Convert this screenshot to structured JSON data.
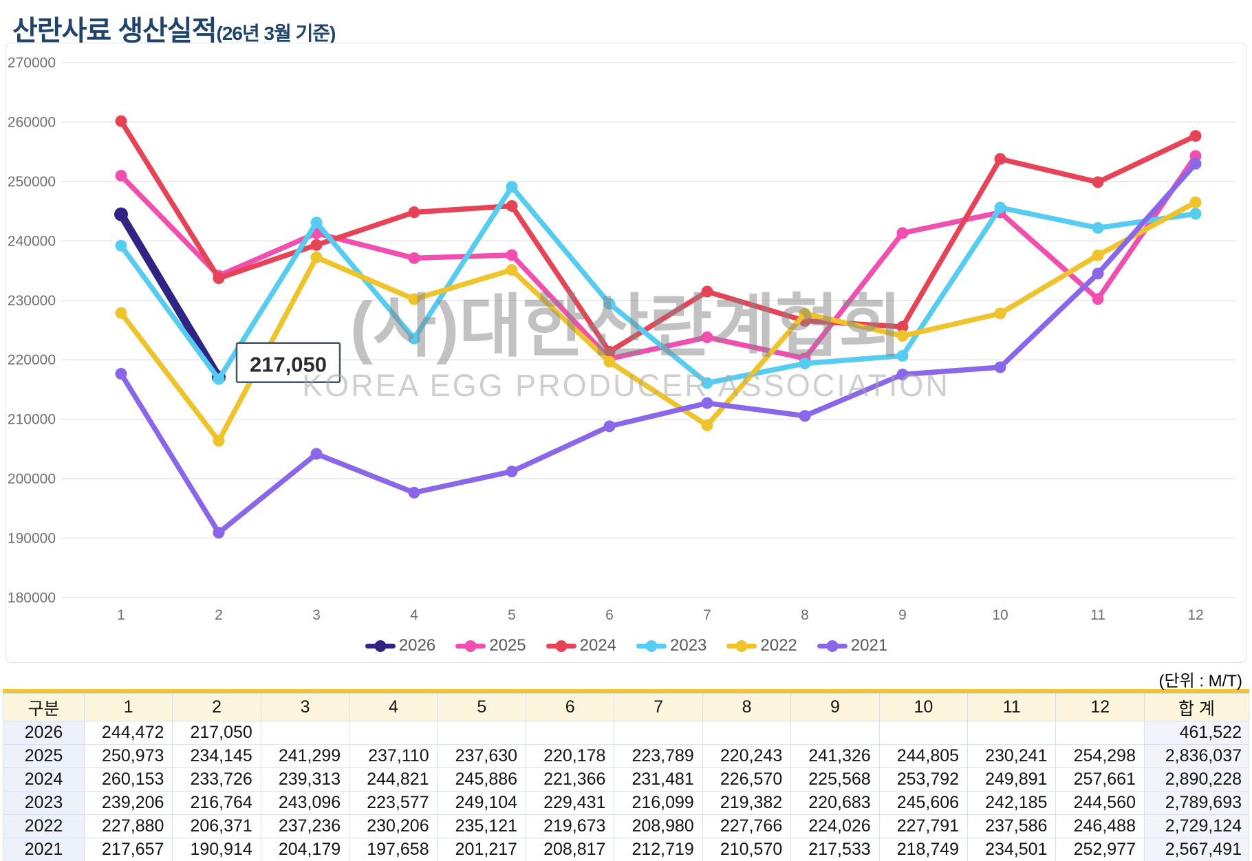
{
  "title": {
    "main": "산란사료 생산실적",
    "suffix": "(26년 3월 기준)"
  },
  "unit_label": "(단위 : M/T)",
  "watermark": {
    "korean": "(사)대한산란계협회",
    "english": "KOREA EGG PRODUCER ASSOCIATION"
  },
  "chart_data": {
    "type": "line",
    "x": [
      1,
      2,
      3,
      4,
      5,
      6,
      7,
      8,
      9,
      10,
      11,
      12
    ],
    "xlabel": "",
    "ylabel": "",
    "ylim": [
      180000,
      270000
    ],
    "ytick_step": 10000,
    "grid": "horizontal",
    "legend_position": "bottom",
    "colors": {
      "grid": "#E7E7E7",
      "axis_text": "#6F6F6F",
      "legend_text": "#595959"
    },
    "series": [
      {
        "name": "2026",
        "color": "#2F2483",
        "bold": true,
        "values": [
          244472,
          217050,
          null,
          null,
          null,
          null,
          null,
          null,
          null,
          null,
          null,
          null
        ]
      },
      {
        "name": "2025",
        "color": "#F04FAF",
        "bold": false,
        "values": [
          250973,
          234145,
          241299,
          237110,
          237630,
          220178,
          223789,
          220243,
          241326,
          244805,
          230241,
          254298
        ]
      },
      {
        "name": "2024",
        "color": "#E64456",
        "bold": false,
        "values": [
          260153,
          233726,
          239313,
          244821,
          245886,
          221366,
          231481,
          226570,
          225568,
          253792,
          249891,
          257661
        ]
      },
      {
        "name": "2023",
        "color": "#56CDF0",
        "bold": false,
        "values": [
          239206,
          216764,
          243096,
          223577,
          249104,
          229431,
          216099,
          219382,
          220683,
          245606,
          242185,
          244560
        ]
      },
      {
        "name": "2022",
        "color": "#EEC32B",
        "bold": false,
        "values": [
          227880,
          206371,
          237236,
          230206,
          235121,
          219673,
          208980,
          227766,
          224026,
          227791,
          237586,
          246488
        ]
      },
      {
        "name": "2021",
        "color": "#8A66E8",
        "bold": false,
        "values": [
          217657,
          190914,
          204179,
          197658,
          201217,
          208817,
          212719,
          210570,
          217533,
          218749,
          234501,
          252977
        ]
      }
    ],
    "annotation": {
      "text": "217,050",
      "series": "2026",
      "month": 2,
      "value": 217050,
      "border_color": "#44546A"
    }
  },
  "table": {
    "headers": [
      "구분",
      "1",
      "2",
      "3",
      "4",
      "5",
      "6",
      "7",
      "8",
      "9",
      "10",
      "11",
      "12",
      "합 계"
    ],
    "rows": [
      {
        "year": "2026",
        "values": [
          "244,472",
          "217,050",
          "",
          "",
          "",
          "",
          "",
          "",
          "",
          "",
          "",
          ""
        ],
        "total": "461,522"
      },
      {
        "year": "2025",
        "values": [
          "250,973",
          "234,145",
          "241,299",
          "237,110",
          "237,630",
          "220,178",
          "223,789",
          "220,243",
          "241,326",
          "244,805",
          "230,241",
          "254,298"
        ],
        "total": "2,836,037"
      },
      {
        "year": "2024",
        "values": [
          "260,153",
          "233,726",
          "239,313",
          "244,821",
          "245,886",
          "221,366",
          "231,481",
          "226,570",
          "225,568",
          "253,792",
          "249,891",
          "257,661"
        ],
        "total": "2,890,228"
      },
      {
        "year": "2023",
        "values": [
          "239,206",
          "216,764",
          "243,096",
          "223,577",
          "249,104",
          "229,431",
          "216,099",
          "219,382",
          "220,683",
          "245,606",
          "242,185",
          "244,560"
        ],
        "total": "2,789,693"
      },
      {
        "year": "2022",
        "values": [
          "227,880",
          "206,371",
          "237,236",
          "230,206",
          "235,121",
          "219,673",
          "208,980",
          "227,766",
          "224,026",
          "227,791",
          "237,586",
          "246,488"
        ],
        "total": "2,729,124"
      },
      {
        "year": "2021",
        "values": [
          "217,657",
          "190,914",
          "204,179",
          "197,658",
          "201,217",
          "208,817",
          "212,719",
          "210,570",
          "217,533",
          "218,749",
          "234,501",
          "252,977"
        ],
        "total": "2,567,491"
      }
    ]
  }
}
